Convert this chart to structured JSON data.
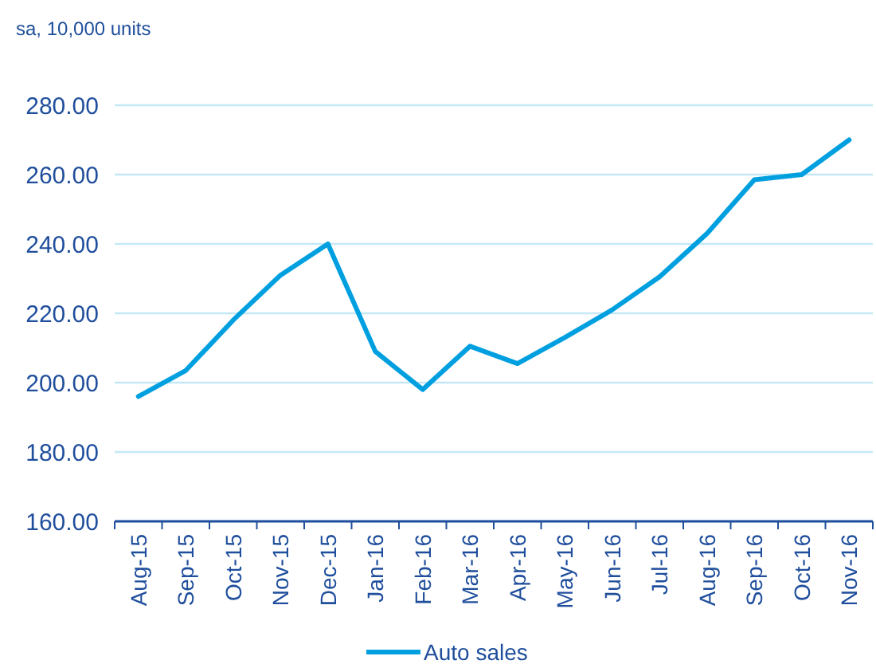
{
  "chart_data": {
    "type": "line",
    "ylabel": "sa, 10,000 units",
    "categories": [
      "Aug-15",
      "Sep-15",
      "Oct-15",
      "Nov-15",
      "Dec-15",
      "Jan-16",
      "Feb-16",
      "Mar-16",
      "Apr-16",
      "May-16",
      "Jun-16",
      "Jul-16",
      "Aug-16",
      "Sep-16",
      "Oct-16",
      "Nov-16"
    ],
    "series": [
      {
        "name": "Auto sales",
        "color": "#00a0e0",
        "values": [
          196,
          203.5,
          218,
          231,
          240,
          209,
          198,
          210.5,
          205.5,
          213,
          221,
          230.5,
          243,
          258.5,
          260,
          270
        ]
      }
    ],
    "ylim": [
      160,
      280
    ],
    "yticks": [
      {
        "value": 160,
        "label": "160.00"
      },
      {
        "value": 180,
        "label": "180.00"
      },
      {
        "value": 200,
        "label": "200.00"
      },
      {
        "value": 220,
        "label": "220.00"
      },
      {
        "value": 240,
        "label": "240.00"
      },
      {
        "value": 260,
        "label": "260.00"
      },
      {
        "value": 280,
        "label": "280.00"
      }
    ],
    "grid": "y",
    "legend": "bottom",
    "marker": "none",
    "line_style": "solid"
  }
}
